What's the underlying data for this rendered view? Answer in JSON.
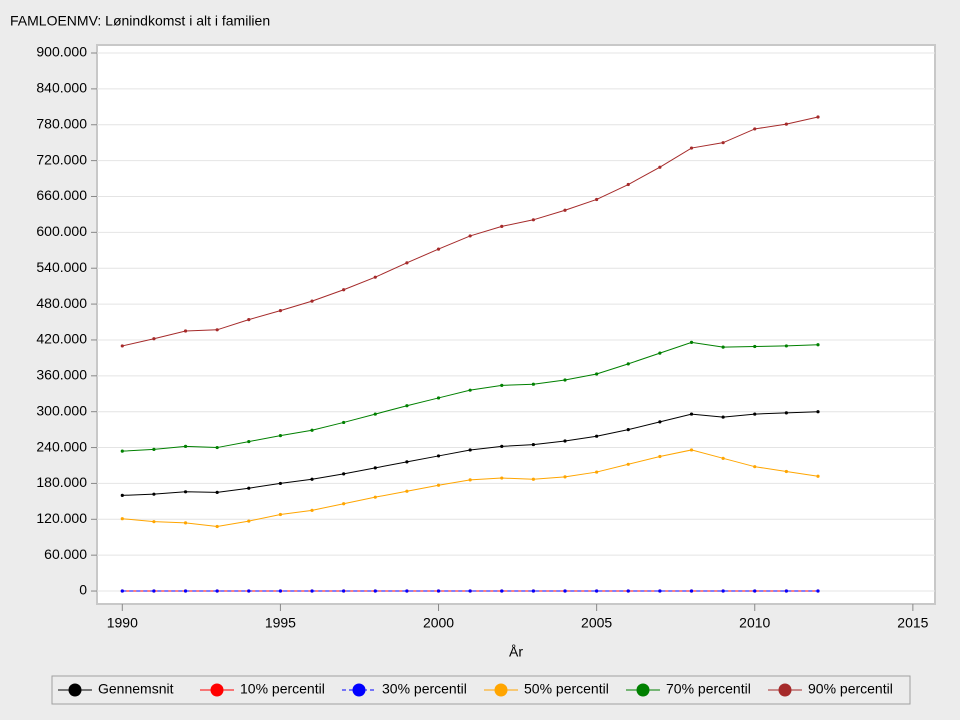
{
  "chart_data": {
    "type": "line",
    "title": "FAMLOENMV: Lønindkomst i alt i familien",
    "x_label": "År",
    "x": [
      1990,
      1991,
      1992,
      1993,
      1994,
      1995,
      1996,
      1997,
      1998,
      1999,
      2000,
      2001,
      2002,
      2003,
      2004,
      2005,
      2006,
      2007,
      2008,
      2009,
      2010,
      2011,
      2012
    ],
    "series": [
      {
        "name": "Gennemsnit",
        "color": "#000000",
        "values": [
          160000,
          162000,
          166000,
          165000,
          172000,
          180000,
          187000,
          196000,
          206000,
          216000,
          226000,
          236000,
          242000,
          245000,
          251000,
          259000,
          270000,
          283000,
          296000,
          291000,
          296000,
          298000,
          300000
        ]
      },
      {
        "name": "10% percentil",
        "color": "#ff0000",
        "values": [
          0,
          0,
          0,
          0,
          0,
          0,
          0,
          0,
          0,
          0,
          0,
          0,
          0,
          0,
          0,
          0,
          0,
          0,
          0,
          0,
          0,
          0,
          0
        ]
      },
      {
        "name": "30% percentil",
        "color": "#0000ff",
        "values": [
          0,
          0,
          0,
          0,
          0,
          0,
          0,
          0,
          0,
          0,
          0,
          0,
          0,
          0,
          0,
          0,
          0,
          0,
          0,
          0,
          0,
          0,
          0
        ]
      },
      {
        "name": "50% percentil",
        "color": "#ffa500",
        "values": [
          121000,
          116000,
          114000,
          108000,
          117000,
          128000,
          135000,
          146000,
          157000,
          167000,
          177000,
          186000,
          189000,
          187000,
          191000,
          199000,
          212000,
          225000,
          236000,
          222000,
          208000,
          200000,
          192000
        ]
      },
      {
        "name": "70% percentil",
        "color": "#008000",
        "values": [
          234000,
          237000,
          242000,
          240000,
          250000,
          260000,
          269000,
          282000,
          296000,
          310000,
          323000,
          336000,
          344000,
          346000,
          353000,
          363000,
          380000,
          398000,
          416000,
          408000,
          409000,
          410000,
          412000
        ]
      },
      {
        "name": "90% percentil",
        "color": "#a52a2a",
        "values": [
          410000,
          422000,
          435000,
          437000,
          454000,
          469000,
          485000,
          504000,
          525000,
          549000,
          572000,
          594000,
          610000,
          621000,
          637000,
          655000,
          680000,
          709000,
          741000,
          750000,
          773000,
          781000,
          793000
        ]
      }
    ],
    "xlim": [
      1989.2,
      2015.7
    ],
    "ylim": [
      -21700,
      913400
    ],
    "xticks": [
      1990,
      1995,
      2000,
      2005,
      2010,
      2015
    ],
    "yticks": [
      0,
      {
        "value": 60000,
        "label": "60.000"
      },
      {
        "value": 120000,
        "label": "120.000"
      },
      {
        "value": 180000,
        "label": "180.000"
      },
      {
        "value": 240000,
        "label": "240.000"
      },
      {
        "value": 300000,
        "label": "300.000"
      },
      {
        "value": 360000,
        "label": "360.000"
      },
      {
        "value": 420000,
        "label": "420.000"
      },
      {
        "value": 480000,
        "label": "480.000"
      },
      {
        "value": 540000,
        "label": "540.000"
      },
      {
        "value": 600000,
        "label": "600.000"
      },
      {
        "value": 660000,
        "label": "660.000"
      },
      {
        "value": 720000,
        "label": "720.000"
      },
      {
        "value": 780000,
        "label": "780.000"
      },
      {
        "value": 840000,
        "label": "840.000"
      },
      {
        "value": 900000,
        "label": "900.000"
      }
    ],
    "grid": true
  }
}
